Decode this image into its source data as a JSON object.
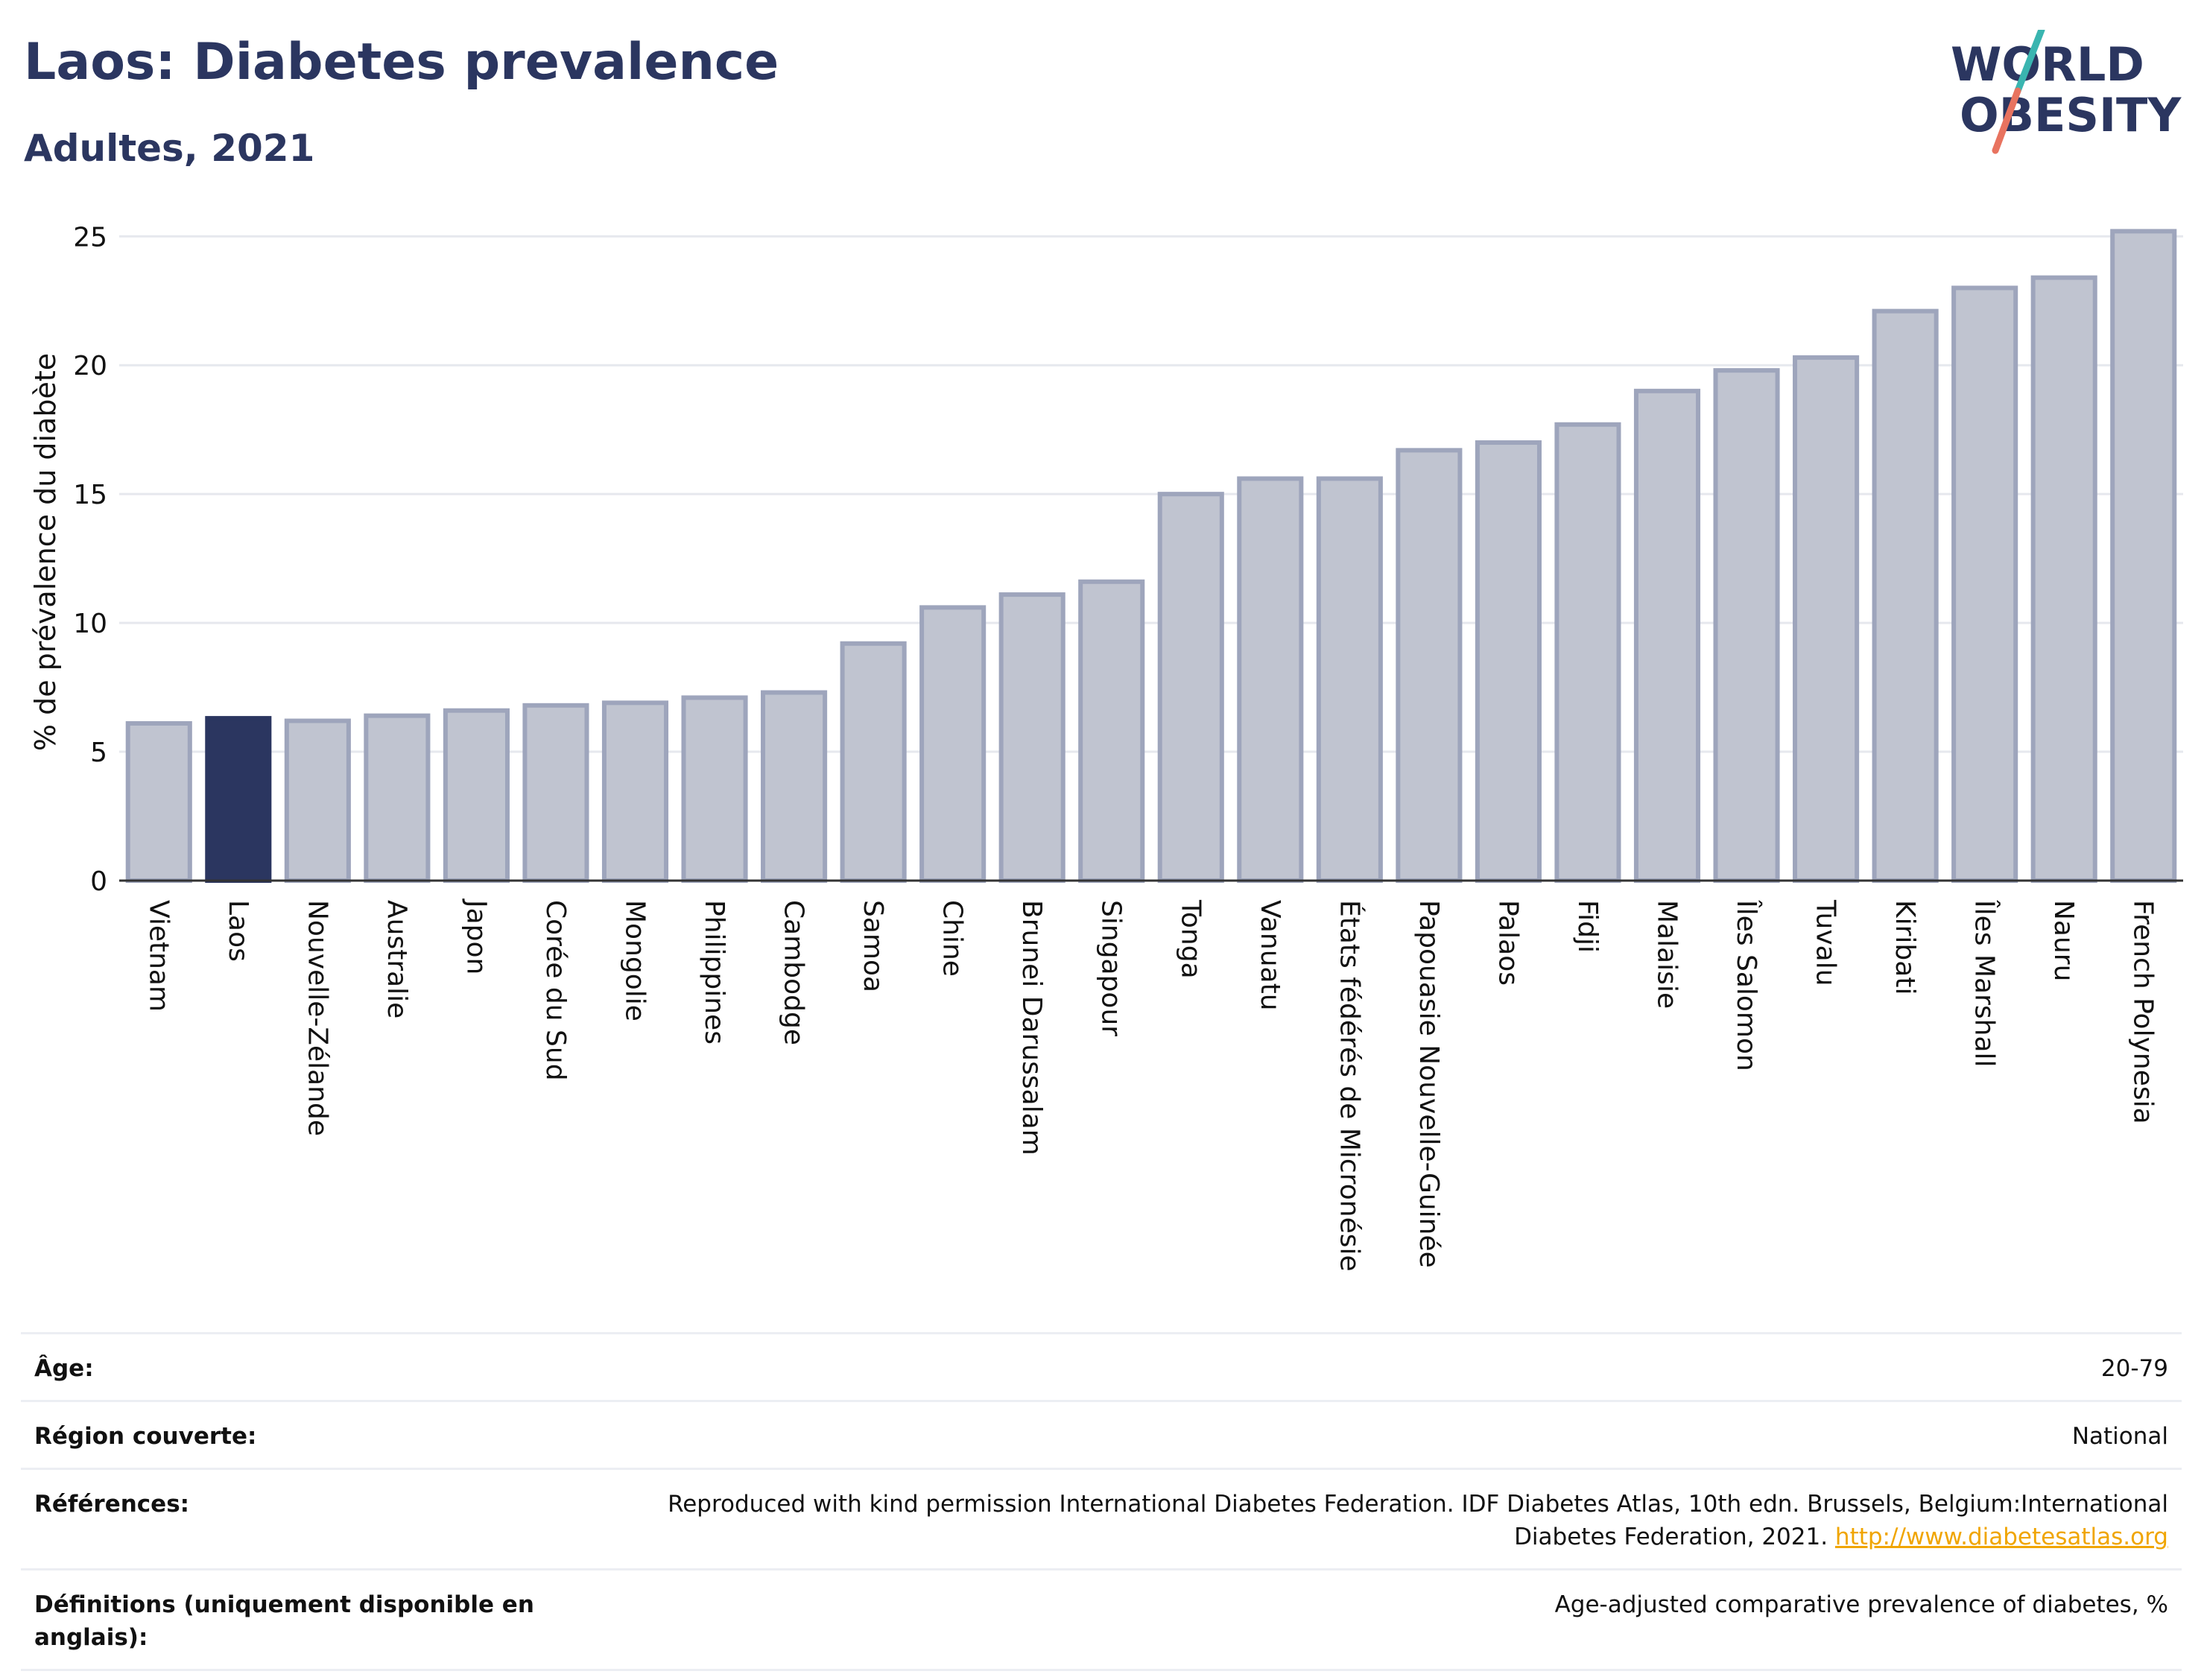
{
  "header": {
    "title": "Laos: Diabetes prevalence",
    "subtitle": "Adultes, 2021"
  },
  "logo": {
    "line1": "WORLD",
    "line2": "OBESITY",
    "colors": {
      "text": "#2b3660",
      "slash_teal": "#3ab5b0",
      "slash_coral": "#e8735f"
    }
  },
  "chart_data": {
    "type": "bar",
    "ylabel": "% de prévalence du diabète",
    "ylim": [
      0,
      25.5
    ],
    "yticks": [
      0,
      5,
      10,
      15,
      20,
      25
    ],
    "grid": true,
    "highlight": "Laos",
    "colors": {
      "bar": "#c0c4d0",
      "bar_edge": "#9ea5bc",
      "highlight": "#2b3660"
    },
    "categories": [
      "Vietnam",
      "Laos",
      "Nouvelle-Zélande",
      "Australie",
      "Japon",
      "Corée du Sud",
      "Mongolie",
      "Philippines",
      "Cambodge",
      "Samoa",
      "Chine",
      "Brunei Darussalam",
      "Singapour",
      "Tonga",
      "Vanuatu",
      "États fédérés de Micronésie",
      "Papouasie Nouvelle-Guinée",
      "Palaos",
      "Fidji",
      "Malaisie",
      "Îles Salomon",
      "Tuvalu",
      "Kiribati",
      "Îles Marshall",
      "Nauru",
      "French Polynesia"
    ],
    "values": [
      6.1,
      6.3,
      6.2,
      6.4,
      6.6,
      6.8,
      6.9,
      7.1,
      7.3,
      9.2,
      10.6,
      11.1,
      11.6,
      15.0,
      15.6,
      15.6,
      16.7,
      17.0,
      17.7,
      19.0,
      19.8,
      20.3,
      22.1,
      23.0,
      23.4,
      25.2
    ]
  },
  "meta": {
    "age_label": "Âge:",
    "age_value": "20-79",
    "region_label": "Région couverte:",
    "region_value": "National",
    "refs_label": "Références:",
    "refs_value": "Reproduced with kind permission International Diabetes Federation.  IDF Diabetes Atlas, 10th edn. Brussels, Belgium:International Diabetes Federation, 2021.",
    "refs_link": "http://www.diabetesatlas.org",
    "defs_label": "Définitions (uniquement disponible en anglais):",
    "defs_value": "Age-adjusted comparative prevalence of diabetes, %"
  }
}
